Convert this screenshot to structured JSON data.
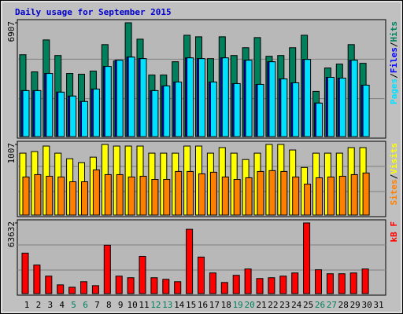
{
  "chart_data": [
    {
      "type": "bar",
      "title": "Daily usage for September 2015",
      "title_color": "#0000cc",
      "legend_separator": "/",
      "ylim": [
        0,
        6907
      ],
      "yticks": [
        6907
      ],
      "series": [
        {
          "name": "Hits",
          "color": "#00805c",
          "values": [
            4967,
            3927,
            5866,
            4920,
            3832,
            3785,
            3974,
            5582,
            4589,
            6907,
            5913,
            3737,
            3737,
            4542,
            6150,
            6055,
            4731,
            6055,
            4920,
            5393,
            6008,
            4873,
            4920,
            5393,
            6150,
            2744,
            4163,
            4400,
            5582,
            4447,
            null
          ]
        },
        {
          "name": "Files",
          "color": "#0000ff",
          "values": [
            2791,
            2791,
            3832,
            2697,
            2460,
            2129,
            2886,
            4258,
            4636,
            4826,
            4731,
            2791,
            3075,
            3312,
            4778,
            4731,
            3312,
            4778,
            3217,
            4636,
            3170,
            4542,
            3501,
            3264,
            4684,
            2034,
            3596,
            3548,
            4636,
            3122,
            null
          ]
        },
        {
          "name": "Pages",
          "color": "#00e0ff",
          "values": [
            2791,
            2791,
            3832,
            2697,
            2460,
            2129,
            2886,
            4258,
            4636,
            4826,
            4731,
            2791,
            3075,
            3312,
            4778,
            4731,
            3312,
            4778,
            3217,
            4636,
            3170,
            4542,
            3501,
            3264,
            4684,
            2034,
            3596,
            3548,
            4636,
            3122,
            null
          ]
        }
      ]
    },
    {
      "type": "bar",
      "legend_separator": "/",
      "ylim": [
        0,
        1007
      ],
      "yticks": [
        1007
      ],
      "series": [
        {
          "name": "Visits",
          "color": "#ffff00",
          "values": [
            883,
            905,
            984,
            883,
            803,
            747,
            826,
            1007,
            984,
            984,
            984,
            883,
            883,
            883,
            984,
            984,
            883,
            962,
            883,
            792,
            883,
            1007,
            1007,
            928,
            679,
            883,
            883,
            883,
            962,
            962,
            null
          ]
        },
        {
          "name": "Sites",
          "color": "#ff8000",
          "values": [
            543,
            577,
            554,
            543,
            475,
            475,
            645,
            577,
            577,
            543,
            554,
            509,
            509,
            622,
            622,
            588,
            611,
            543,
            509,
            532,
            622,
            634,
            622,
            543,
            441,
            532,
            543,
            554,
            577,
            600,
            null
          ]
        }
      ]
    },
    {
      "type": "bar",
      "ylim": [
        0,
        63632
      ],
      "yticks": [
        63632
      ],
      "categories": [
        "1",
        "2",
        "3",
        "4",
        "5",
        "6",
        "7",
        "8",
        "9",
        "10",
        "11",
        "12",
        "13",
        "14",
        "15",
        "16",
        "17",
        "18",
        "19",
        "20",
        "21",
        "22",
        "23",
        "24",
        "25",
        "26",
        "27",
        "28",
        "29",
        "30",
        "31"
      ],
      "category_colors": [
        "#000000",
        "#000000",
        "#000000",
        "#000000",
        "#00805c",
        "#00805c",
        "#000000",
        "#000000",
        "#000000",
        "#000000",
        "#000000",
        "#00805c",
        "#00805c",
        "#000000",
        "#000000",
        "#000000",
        "#000000",
        "#000000",
        "#00805c",
        "#00805c",
        "#000000",
        "#000000",
        "#000000",
        "#000000",
        "#000000",
        "#00805c",
        "#00805c",
        "#000000",
        "#000000",
        "#000000",
        "#000000"
      ],
      "series": [
        {
          "name": "kB F",
          "color": "#ff0000",
          "values": [
            36465,
            25740,
            15730,
            7865,
            5720,
            10725,
            7150,
            43615,
            15730,
            14300,
            33605,
            14300,
            12870,
            10725,
            57915,
            32890,
            18590,
            10010,
            16445,
            22165,
            13585,
            14300,
            15730,
            18590,
            63632,
            21450,
            17875,
            17875,
            18590,
            22165,
            null
          ]
        }
      ]
    }
  ]
}
